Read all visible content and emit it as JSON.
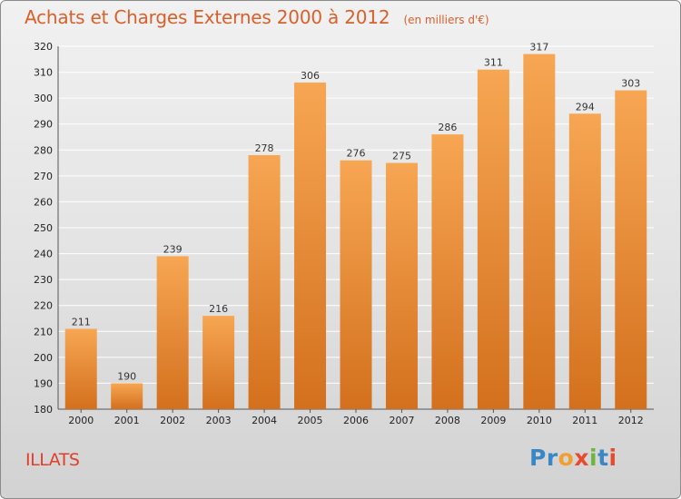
{
  "chart_data": {
    "type": "bar",
    "title": "Achats et Charges Externes 2000 à 2012",
    "subtitle": "(en milliers d'€)",
    "categories": [
      "2000",
      "2001",
      "2002",
      "2003",
      "2004",
      "2005",
      "2006",
      "2007",
      "2008",
      "2009",
      "2010",
      "2011",
      "2012"
    ],
    "values": [
      211,
      190,
      239,
      216,
      278,
      306,
      276,
      275,
      286,
      311,
      317,
      294,
      303
    ],
    "ylim": [
      180,
      320
    ],
    "yticks": [
      180,
      190,
      200,
      210,
      220,
      230,
      240,
      250,
      260,
      270,
      280,
      290,
      300,
      310,
      320
    ],
    "xlabel": "",
    "ylabel": "",
    "grid": true,
    "legend": "none",
    "colors": {
      "bar_top": "#f7a653",
      "bar_bottom": "#d3701d",
      "grid": "#ffffff",
      "axis": "#555555"
    }
  },
  "footer": {
    "commune": "ILLATS",
    "logo_letters": [
      {
        "char": "P",
        "color": "#3a87c8"
      },
      {
        "char": "r",
        "color": "#3a87c8"
      },
      {
        "char": "o",
        "color": "#f0a030"
      },
      {
        "char": "x",
        "color": "#e84a2e"
      },
      {
        "char": "i",
        "color": "#6cb63e"
      },
      {
        "char": "t",
        "color": "#3a87c8"
      },
      {
        "char": "i",
        "color": "#e84a2e"
      }
    ]
  }
}
